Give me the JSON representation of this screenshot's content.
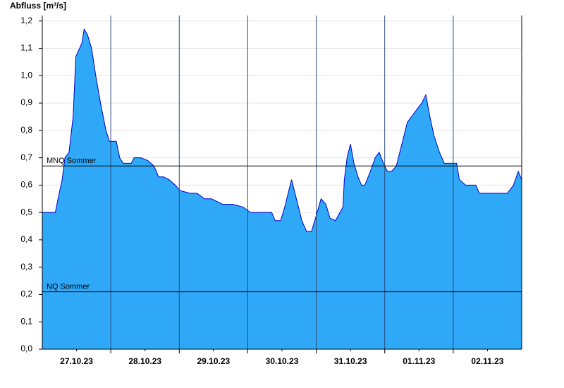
{
  "chart_data": {
    "type": "area",
    "ylabel": "Abfluss [m³/s]",
    "x": [
      0,
      0.19,
      0.23,
      0.29,
      0.33,
      0.39,
      0.45,
      0.49,
      0.58,
      0.61,
      0.66,
      0.72,
      0.78,
      0.85,
      0.93,
      0.98,
      1.08,
      1.13,
      1.18,
      1.3,
      1.34,
      1.44,
      1.54,
      1.63,
      1.7,
      1.77,
      1.85,
      1.94,
      2.01,
      2.16,
      2.26,
      2.37,
      2.47,
      2.63,
      2.78,
      2.93,
      3.04,
      3.35,
      3.4,
      3.48,
      3.54,
      3.6,
      3.64,
      3.71,
      3.79,
      3.86,
      3.93,
      3.99,
      4.07,
      4.14,
      4.2,
      4.28,
      4.39,
      4.41,
      4.45,
      4.5,
      4.55,
      4.61,
      4.66,
      4.71,
      4.79,
      4.86,
      4.92,
      4.98,
      5.04,
      5.1,
      5.17,
      5.25,
      5.33,
      5.39,
      5.48,
      5.54,
      5.6,
      5.66,
      5.72,
      5.8,
      5.87,
      5.97,
      6.05,
      6.09,
      6.18,
      6.33,
      6.38,
      6.59,
      6.79,
      6.88,
      6.95,
      7.0
    ],
    "series": [
      {
        "name": "Abfluss",
        "color": "#2fa8f8",
        "line_color": "#0000cc",
        "values": [
          0.5,
          0.5,
          0.55,
          0.62,
          0.7,
          0.72,
          0.85,
          1.07,
          1.12,
          1.17,
          1.15,
          1.1,
          1.0,
          0.9,
          0.8,
          0.76,
          0.76,
          0.7,
          0.68,
          0.68,
          0.7,
          0.7,
          0.69,
          0.67,
          0.63,
          0.63,
          0.62,
          0.6,
          0.58,
          0.57,
          0.57,
          0.55,
          0.55,
          0.53,
          0.53,
          0.52,
          0.5,
          0.5,
          0.47,
          0.47,
          0.52,
          0.58,
          0.62,
          0.55,
          0.47,
          0.43,
          0.43,
          0.48,
          0.55,
          0.53,
          0.48,
          0.47,
          0.52,
          0.62,
          0.7,
          0.75,
          0.68,
          0.63,
          0.6,
          0.6,
          0.65,
          0.7,
          0.72,
          0.68,
          0.65,
          0.65,
          0.67,
          0.75,
          0.83,
          0.85,
          0.88,
          0.9,
          0.93,
          0.85,
          0.78,
          0.72,
          0.68,
          0.68,
          0.68,
          0.62,
          0.6,
          0.6,
          0.57,
          0.57,
          0.57,
          0.6,
          0.65,
          0.62
        ]
      }
    ],
    "xlim": [
      0,
      7
    ],
    "xticks": [
      {
        "value": 0.5,
        "label": "27.10.23"
      },
      {
        "value": 1.5,
        "label": "28.10.23"
      },
      {
        "value": 2.5,
        "label": "29.10.23"
      },
      {
        "value": 3.5,
        "label": "30.10.23"
      },
      {
        "value": 4.5,
        "label": "31.10.23"
      },
      {
        "value": 5.5,
        "label": "01.11.23"
      },
      {
        "value": 6.5,
        "label": "02.11.23"
      }
    ],
    "xgrid": [
      1,
      2,
      3,
      4,
      5,
      6
    ],
    "ylim": [
      0,
      1.22
    ],
    "yticks": [
      {
        "value": 0,
        "label": "0,0"
      },
      {
        "value": 0.1,
        "label": "0,1"
      },
      {
        "value": 0.2,
        "label": "0,2"
      },
      {
        "value": 0.3,
        "label": "0,3"
      },
      {
        "value": 0.4,
        "label": "0,4"
      },
      {
        "value": 0.5,
        "label": "0,5"
      },
      {
        "value": 0.6,
        "label": "0,6"
      },
      {
        "value": 0.7,
        "label": "0,7"
      },
      {
        "value": 0.8,
        "label": "0,8"
      },
      {
        "value": 0.9,
        "label": "0,9"
      },
      {
        "value": 1.0,
        "label": "1,0"
      },
      {
        "value": 1.1,
        "label": "1,1"
      },
      {
        "value": 1.2,
        "label": "1,2"
      }
    ],
    "grid": true,
    "reference_lines": [
      {
        "label": "MNQ Sommer",
        "value": 0.67
      },
      {
        "label": "NQ Sommer",
        "value": 0.21
      }
    ]
  }
}
